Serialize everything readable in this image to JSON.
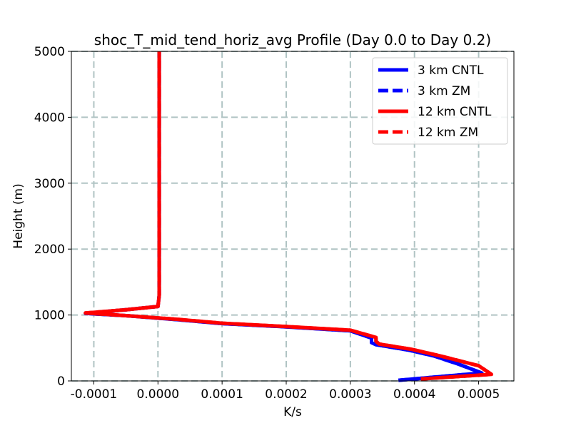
{
  "chart_data": {
    "type": "line",
    "title": "shoc_T_mid_tend_horiz_avg Profile (Day 0.0 to Day 0.2)",
    "xlabel": "K/s",
    "ylabel": "Height (m)",
    "xlim": [
      -0.000135,
      0.000555
    ],
    "ylim": [
      0,
      5000
    ],
    "x_ticks": [
      "-0.0001",
      "0.0000",
      "0.0001",
      "0.0002",
      "0.0003",
      "0.0004",
      "0.0005"
    ],
    "x_tick_values": [
      -0.0001,
      0.0,
      0.0001,
      0.0002,
      0.0003,
      0.0004,
      0.0005
    ],
    "y_ticks": [
      "0",
      "1000",
      "2000",
      "3000",
      "4000",
      "5000"
    ],
    "y_tick_values": [
      0,
      1000,
      2000,
      3000,
      4000,
      5000
    ],
    "grid": true,
    "legend_position": "top-right",
    "series": [
      {
        "name": "3 km CNTL",
        "color": "#0000ff",
        "style": "solid",
        "x": [
          0.000375,
          0.000505,
          0.00047,
          0.00043,
          0.00039,
          0.00034,
          0.000333,
          0.000333,
          0.0003,
          0.0002,
          0.0001,
          3e-05,
          -5e-05,
          -0.000113,
          -5e-05,
          0.0,
          2e-06,
          2e-06,
          2e-06
        ],
        "y": [
          10,
          120,
          250,
          380,
          470,
          550,
          580,
          650,
          760,
          820,
          870,
          930,
          990,
          1025,
          1080,
          1130,
          1300,
          3000,
          5000
        ]
      },
      {
        "name": "3 km ZM",
        "color": "#0000ff",
        "style": "dashed",
        "x": [
          0.000375,
          0.000505,
          0.00047,
          0.00043,
          0.00039,
          0.00034,
          0.000333,
          0.000333,
          0.0003,
          0.0002,
          0.0001,
          3e-05,
          -5e-05,
          -0.000113,
          -5e-05,
          0.0,
          2e-06,
          2e-06,
          2e-06
        ],
        "y": [
          10,
          120,
          250,
          380,
          470,
          550,
          580,
          650,
          760,
          820,
          870,
          930,
          990,
          1025,
          1080,
          1130,
          1300,
          3000,
          5000
        ]
      },
      {
        "name": "12 km CNTL",
        "color": "#ff0000",
        "style": "solid",
        "x": [
          0.00041,
          0.00052,
          0.0005,
          0.00044,
          0.000395,
          0.000345,
          0.00034,
          0.00034,
          0.0003,
          0.0002,
          0.0001,
          3e-05,
          -5e-05,
          -0.000113,
          -5e-05,
          0.0,
          2e-06,
          2e-06,
          2e-06
        ],
        "y": [
          30,
          100,
          230,
          380,
          480,
          560,
          600,
          660,
          770,
          825,
          875,
          935,
          990,
          1030,
          1080,
          1130,
          1300,
          3000,
          5000
        ]
      },
      {
        "name": "12 km ZM",
        "color": "#ff0000",
        "style": "dashed",
        "x": [
          0.00041,
          0.00052,
          0.0005,
          0.00044,
          0.000395,
          0.000345,
          0.00034,
          0.00034,
          0.0003,
          0.0002,
          0.0001,
          3e-05,
          -5e-05,
          -0.000113,
          -5e-05,
          0.0,
          2e-06,
          2e-06,
          2e-06
        ],
        "y": [
          30,
          100,
          230,
          380,
          480,
          560,
          600,
          660,
          770,
          825,
          875,
          935,
          990,
          1030,
          1080,
          1130,
          1300,
          3000,
          5000
        ]
      }
    ]
  }
}
